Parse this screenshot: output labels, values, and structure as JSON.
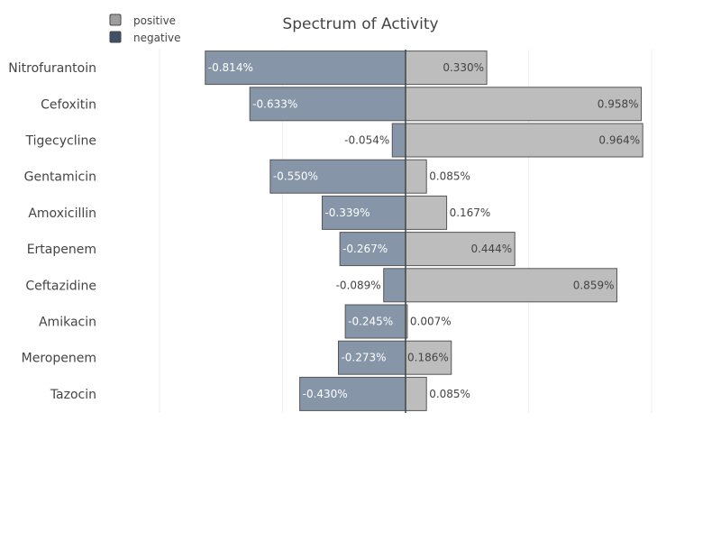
{
  "chart_data": {
    "type": "bar",
    "orientation": "horizontal",
    "barmode": "relative",
    "title": "Spectrum of Activity",
    "categories": [
      "Nitrofurantoin",
      "Cefoxitin",
      "Tigecycline",
      "Gentamicin",
      "Amoxicillin",
      "Ertapenem",
      "Ceftazidine",
      "Amikacin",
      "Meropenem",
      "Tazocin"
    ],
    "series": [
      {
        "name": "positive",
        "values": [
          0.33,
          0.958,
          0.964,
          0.085,
          0.167,
          0.444,
          0.859,
          0.007,
          0.186,
          0.085
        ],
        "labels": [
          "0.330%",
          "0.958%",
          "0.964%",
          "0.085%",
          "0.167%",
          "0.444%",
          "0.859%",
          "0.007%",
          "0.186%",
          "0.085%"
        ],
        "color": "#bdbdbd"
      },
      {
        "name": "negative",
        "values": [
          -0.814,
          -0.633,
          -0.054,
          -0.55,
          -0.339,
          -0.267,
          -0.089,
          -0.245,
          -0.273,
          -0.43
        ],
        "labels": [
          "-0.814%",
          "-0.633%",
          "-0.054%",
          "-0.550%",
          "-0.339%",
          "-0.267%",
          "-0.089%",
          "-0.245%",
          "-0.273%",
          "-0.430%"
        ],
        "color": "#8696a8"
      }
    ],
    "xlim": [
      -1.0,
      1.0
    ],
    "grid": true,
    "legend_position": "top-left",
    "legend_swatch_colors": {
      "positive": "#9e9e9e",
      "negative": "#3f5166"
    }
  }
}
